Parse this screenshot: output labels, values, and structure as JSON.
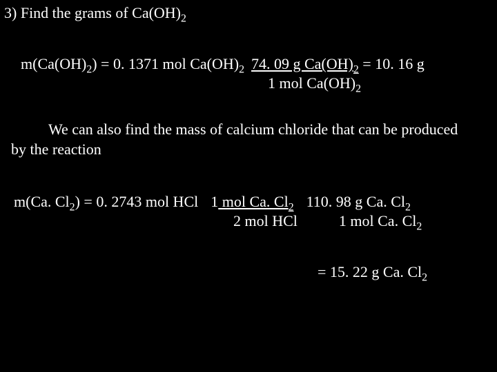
{
  "colors": {
    "background": "#000000",
    "text": "#ffffff"
  },
  "typography": {
    "family": "Times New Roman",
    "base_size_pt": 22
  },
  "step": {
    "number": "3)",
    "title_a": "Find the grams of Ca(OH)",
    "title_sub": "2"
  },
  "calc1": {
    "lhs_a": "m(Ca(OH)",
    "lhs_sub": "2",
    "lhs_b": ") = 0. 1371 mol Ca(OH)",
    "lhs_sub2": "2",
    "frac_top_a": "74. 09 g Ca(OH)",
    "frac_top_sub": "2",
    "rhs": " = 10. 16 g",
    "frac_bot_a": "1 mol Ca(OH)",
    "frac_bot_sub": "2"
  },
  "paragraph": {
    "indent_text": "We can also find the  mass of calcium chloride that can be produced by the reaction"
  },
  "calc2": {
    "lhs_a": "m(Ca. Cl",
    "lhs_sub": "2",
    "lhs_b": ") = 0. 2743 mol HCl",
    "f1_top_a": "1",
    "f1_top_b": " mol Ca. Cl",
    "f1_top_sub": "2",
    "f1_bot": "2 mol HCl",
    "f2_top_a": "110. 98 g Ca. Cl",
    "f2_top_sub": "2",
    "f2_bot_a": "1 mol Ca. Cl",
    "f2_bot_sub": "2",
    "result_a": "=  15. 22 g Ca. Cl",
    "result_sub": "2"
  }
}
